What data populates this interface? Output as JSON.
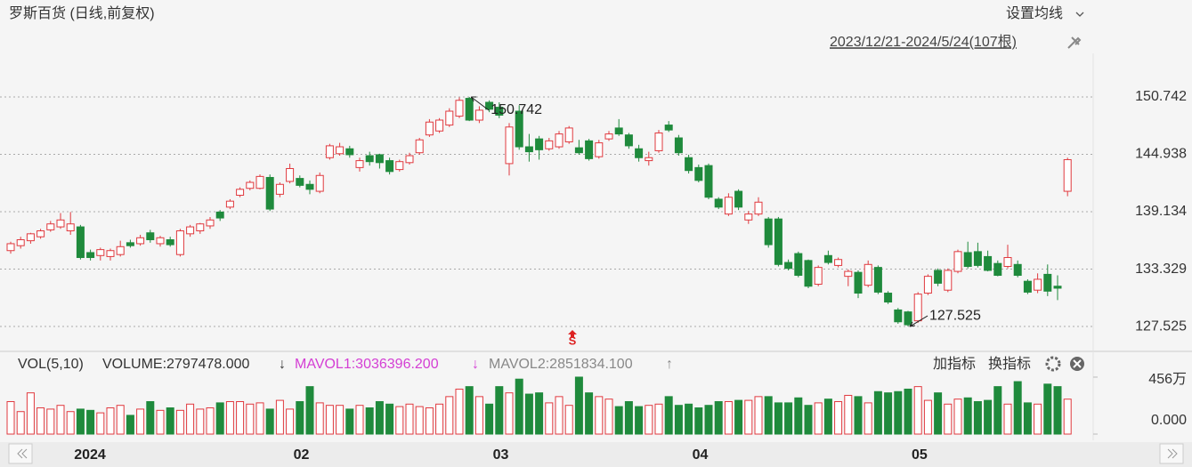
{
  "ui": {
    "title": "罗斯百货 (日线,前复权)",
    "ma_settings": "设置均线",
    "range": "2023/12/21-2024/5/24(107根)",
    "vol_label": "VOL(5,10)",
    "volume": "VOLUME:2797478.000",
    "volume_arrow": "↓",
    "mavol1": "MAVOL1:3036396.200",
    "mavol1_arrow": "↓",
    "mavol2": "MAVOL2:2851834.100",
    "mavol2_arrow": "↑",
    "add_indicator": "加指标",
    "switch_indicator": "换指标",
    "signal": "S"
  },
  "chart_data": [
    {
      "type": "candlestick",
      "up_color": "#e0393e",
      "down_color": "#1f8a3c",
      "ylim": [
        125.28,
        152.45
      ],
      "yticks": [
        150.742,
        144.938,
        139.134,
        133.329,
        127.525
      ],
      "grid": true,
      "annotations": [
        150.742,
        127.525
      ],
      "open": [
        135.2,
        135.7,
        136.2,
        136.6,
        137.3,
        137.6,
        137.2,
        137.6,
        135.0,
        134.7,
        134.6,
        134.8,
        136.0,
        135.9,
        137.0,
        135.9,
        136.3,
        134.8,
        136.9,
        137.2,
        137.7,
        139.1,
        139.6,
        140.8,
        141.5,
        141.5,
        142.6,
        140.9,
        142.2,
        142.5,
        141.9,
        141.2,
        144.6,
        145.0,
        145.5,
        143.6,
        144.8,
        144.9,
        144.3,
        143.4,
        144.1,
        145.1,
        146.9,
        147.3,
        147.9,
        148.8,
        150.6,
        148.4,
        150.2,
        149.7,
        144.0,
        149.3,
        145.7,
        146.5,
        145.5,
        145.7,
        146.2,
        145.6,
        146.3,
        144.7,
        146.5,
        147.6,
        146.9,
        145.5,
        144.3,
        145.3,
        147.9,
        146.6,
        144.6,
        143.6,
        143.8,
        140.4,
        138.9,
        141.2,
        138.3,
        138.9,
        138.4,
        138.4,
        134.0,
        134.9,
        134.2,
        131.8,
        134.7,
        133.7,
        132.6,
        133.0,
        131.7,
        133.5,
        130.9,
        129.2,
        129.0,
        128.1,
        130.9,
        133.2,
        131.2,
        133.1,
        135.0,
        135.1,
        134.6,
        133.9,
        133.6,
        133.8,
        132.1,
        131.2,
        132.8,
        131.6,
        141.2
      ],
      "high": [
        136.1,
        136.6,
        137.0,
        137.4,
        138.2,
        139.0,
        139.1,
        137.8,
        135.3,
        135.5,
        135.4,
        136.2,
        136.3,
        136.8,
        137.3,
        136.7,
        136.6,
        137.4,
        137.8,
        138.0,
        138.6,
        139.3,
        140.4,
        141.6,
        142.3,
        142.9,
        142.9,
        142.1,
        144.0,
        142.8,
        142.3,
        143.1,
        146.0,
        146.1,
        145.8,
        144.6,
        145.2,
        145.0,
        144.6,
        144.4,
        145.1,
        146.6,
        148.5,
        148.6,
        149.6,
        150.7,
        150.742,
        149.8,
        150.4,
        150.2,
        148.1,
        149.9,
        147.0,
        146.8,
        146.6,
        147.3,
        147.8,
        146.4,
        146.5,
        146.4,
        147.3,
        148.5,
        147.1,
        145.9,
        145.2,
        147.4,
        148.3,
        146.9,
        144.9,
        143.9,
        144.0,
        140.6,
        141.0,
        141.4,
        139.2,
        140.6,
        138.6,
        138.6,
        134.3,
        135.1,
        134.3,
        133.7,
        135.2,
        134.5,
        133.3,
        133.2,
        134.2,
        133.7,
        131.1,
        129.4,
        129.1,
        131.0,
        132.8,
        133.4,
        133.4,
        135.3,
        136.1,
        136.0,
        135.2,
        134.2,
        135.8,
        134.2,
        132.3,
        132.9,
        133.8,
        132.7,
        144.6
      ],
      "low": [
        134.9,
        135.4,
        135.9,
        136.4,
        137.1,
        137.4,
        136.8,
        134.3,
        134.2,
        134.2,
        134.2,
        134.6,
        135.5,
        135.7,
        136.0,
        135.6,
        135.6,
        134.6,
        136.6,
        136.9,
        137.4,
        138.2,
        139.4,
        140.6,
        141.3,
        141.4,
        139.2,
        140.6,
        142.0,
        141.6,
        140.9,
        141.0,
        144.4,
        144.8,
        144.6,
        143.2,
        143.8,
        143.5,
        142.9,
        143.2,
        143.9,
        144.9,
        146.7,
        147.1,
        147.7,
        148.6,
        148.3,
        148.1,
        149.2,
        148.6,
        142.8,
        145.4,
        144.2,
        144.4,
        145.3,
        145.5,
        146.0,
        144.9,
        144.3,
        144.5,
        146.3,
        146.8,
        145.5,
        144.2,
        143.8,
        145.1,
        147.2,
        144.8,
        143.0,
        142.1,
        140.4,
        139.4,
        138.7,
        139.3,
        137.9,
        138.7,
        135.5,
        133.6,
        133.2,
        132.5,
        131.4,
        131.6,
        133.8,
        133.5,
        131.6,
        130.4,
        131.5,
        130.8,
        129.8,
        127.8,
        127.525,
        127.9,
        130.7,
        131.6,
        131.0,
        132.9,
        133.4,
        133.5,
        133.1,
        132.6,
        133.4,
        132.5,
        130.8,
        130.9,
        130.6,
        130.2,
        140.7
      ],
      "close": [
        135.9,
        136.3,
        136.9,
        137.2,
        137.9,
        138.3,
        137.9,
        134.5,
        134.5,
        135.3,
        135.2,
        135.6,
        135.7,
        136.5,
        136.3,
        136.5,
        135.8,
        137.2,
        137.6,
        137.9,
        138.3,
        138.5,
        140.2,
        141.4,
        142.1,
        142.7,
        139.4,
        141.9,
        143.5,
        141.8,
        141.4,
        142.8,
        145.8,
        145.7,
        144.9,
        144.3,
        144.2,
        144.1,
        143.2,
        144.2,
        144.8,
        146.4,
        148.2,
        148.4,
        149.3,
        150.4,
        148.4,
        149.4,
        149.5,
        148.9,
        147.7,
        145.7,
        145.2,
        145.4,
        146.3,
        147.0,
        147.6,
        145.1,
        144.5,
        146.1,
        147.0,
        147.0,
        145.8,
        144.6,
        144.6,
        147.1,
        147.4,
        145.1,
        143.3,
        142.3,
        140.6,
        139.6,
        140.6,
        139.6,
        138.9,
        140.1,
        135.8,
        133.8,
        133.4,
        132.7,
        131.6,
        133.5,
        134.0,
        134.3,
        133.1,
        130.9,
        133.8,
        131.0,
        130.0,
        128.0,
        127.7,
        130.8,
        132.6,
        131.9,
        133.2,
        135.1,
        133.6,
        133.7,
        133.2,
        132.7,
        134.5,
        132.7,
        131.0,
        132.3,
        131.1,
        131.4,
        144.4
      ]
    },
    {
      "type": "bar",
      "ylim": [
        0,
        4700000
      ],
      "yticks": [
        {
          "value": 4560000,
          "label": "456万"
        },
        {
          "value": 0,
          "label": "0.000"
        }
      ],
      "categories": [
        null,
        null,
        null,
        null,
        null,
        null,
        "2024",
        null,
        null,
        null,
        null,
        null,
        null,
        null,
        null,
        null,
        null,
        null,
        null,
        null,
        null,
        null,
        null,
        null,
        null,
        null,
        null,
        null,
        "02",
        null,
        null,
        null,
        null,
        null,
        null,
        null,
        null,
        null,
        null,
        null,
        null,
        null,
        null,
        null,
        null,
        null,
        null,
        null,
        "03",
        null,
        null,
        null,
        null,
        null,
        null,
        null,
        null,
        null,
        null,
        null,
        null,
        null,
        null,
        null,
        null,
        null,
        null,
        null,
        "04",
        null,
        null,
        null,
        null,
        null,
        null,
        null,
        null,
        null,
        null,
        null,
        null,
        null,
        null,
        null,
        null,
        null,
        null,
        null,
        null,
        null,
        "05",
        null,
        null,
        null,
        null,
        null,
        null,
        null,
        null,
        null,
        null,
        null,
        null,
        null,
        null,
        null,
        null
      ],
      "values": [
        2600000,
        1800000,
        3300000,
        2100000,
        2000000,
        2300000,
        1800000,
        2000000,
        1900000,
        1700000,
        2100000,
        2300000,
        1500000,
        2000000,
        2600000,
        1900000,
        2100000,
        1900000,
        2400000,
        2000000,
        2100000,
        2500000,
        2600000,
        2600000,
        2400000,
        2500000,
        2000000,
        2700000,
        2000000,
        2600000,
        3800000,
        2500000,
        2300000,
        2300000,
        2000000,
        2300000,
        2100000,
        2600000,
        2400000,
        2200000,
        2400000,
        2200000,
        2100000,
        2400000,
        3000000,
        3600000,
        3800000,
        3000000,
        2400000,
        3800000,
        3300000,
        4400000,
        3200000,
        3300000,
        2500000,
        3000000,
        2300000,
        4560000,
        3300000,
        3000000,
        2800000,
        2200000,
        2600000,
        2200000,
        2300000,
        2400000,
        3000000,
        2300000,
        2400000,
        2100000,
        2300000,
        2600000,
        2600000,
        2700000,
        2700000,
        3000000,
        3000000,
        2500000,
        2500000,
        2900000,
        2300000,
        2500000,
        2800000,
        2600000,
        3100000,
        3000000,
        2500000,
        3400000,
        3300000,
        3400000,
        3600000,
        3800000,
        2700000,
        3300000,
        2400000,
        2800000,
        2900000,
        2600000,
        2700000,
        3800000,
        2400000,
        4200000,
        2500000,
        2400000,
        4000000,
        3800000,
        2797478
      ]
    }
  ]
}
